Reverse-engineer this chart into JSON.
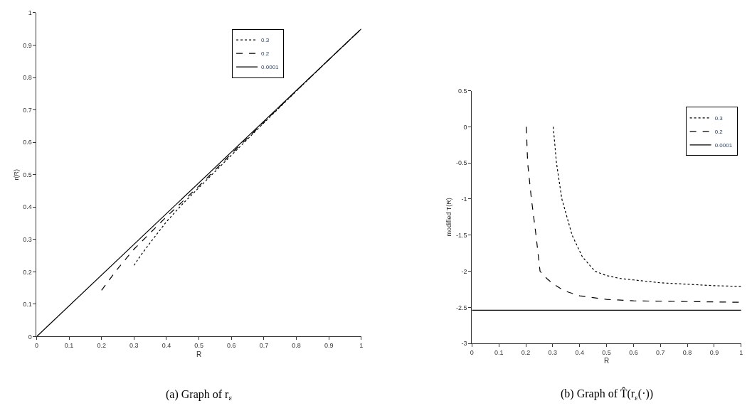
{
  "chart_data": [
    {
      "type": "line",
      "xlabel": "R",
      "ylabel": "r(R)",
      "xlim": [
        0,
        1
      ],
      "ylim": [
        0,
        1
      ],
      "xticks": [
        0,
        0.1,
        0.2,
        0.3,
        0.4,
        0.5,
        0.6,
        0.7,
        0.8,
        0.9,
        1
      ],
      "yticks": [
        0,
        0.1,
        0.2,
        0.3,
        0.4,
        0.5,
        0.6,
        0.7,
        0.8,
        0.9,
        1
      ],
      "legend": "top",
      "annotations": [
        "(a) Graph of r$_{ε}$"
      ],
      "series": [
        {
          "name": "0.3",
          "color": "#000000",
          "line_style": "dotted",
          "x": [
            0.3,
            0.32,
            0.35,
            0.4,
            0.45,
            0.5,
            0.6,
            0.7,
            0.8,
            0.9,
            1
          ],
          "values": [
            0.22,
            0.25,
            0.29,
            0.355,
            0.41,
            0.46,
            0.56,
            0.66,
            0.758,
            0.855,
            0.95
          ]
        },
        {
          "name": "0.2",
          "color": "#000000",
          "line_style": "dashed",
          "x": [
            0.2,
            0.22,
            0.25,
            0.3,
            0.35,
            0.4,
            0.5,
            0.6,
            0.7,
            0.8,
            0.9,
            1
          ],
          "values": [
            0.143,
            0.17,
            0.21,
            0.27,
            0.32,
            0.37,
            0.465,
            0.565,
            0.662,
            0.759,
            0.855,
            0.95
          ]
        },
        {
          "name": "0.0001",
          "color": "#000000",
          "line_style": "solid",
          "x": [
            0,
            1
          ],
          "values": [
            0,
            0.95
          ]
        }
      ]
    },
    {
      "type": "line",
      "xlabel": "R",
      "ylabel": "modified T(R)",
      "xlim": [
        0,
        1
      ],
      "ylim": [
        -3,
        0.5
      ],
      "xticks": [
        0,
        0.1,
        0.2,
        0.3,
        0.4,
        0.5,
        0.6,
        0.7,
        0.8,
        0.9,
        1
      ],
      "yticks": [
        -3,
        -2.5,
        -2,
        -1.5,
        -1,
        -0.5,
        0,
        0.5
      ],
      "legend": "top right",
      "annotations": [
        "(b) Graph of T̂(r$_{ε}$(·))"
      ],
      "series": [
        {
          "name": "0.3",
          "color": "#000000",
          "line_style": "dotted",
          "x": [
            0.302,
            0.314,
            0.334,
            0.372,
            0.41,
            0.457,
            0.5,
            0.55,
            0.6,
            0.7,
            0.8,
            0.9,
            1
          ],
          "values": [
            0,
            -0.5,
            -1,
            -1.5,
            -1.8,
            -2,
            -2.06,
            -2.1,
            -2.12,
            -2.16,
            -2.18,
            -2.2,
            -2.21
          ]
        },
        {
          "name": "0.2",
          "color": "#000000",
          "line_style": "dashed",
          "x": [
            0.202,
            0.207,
            0.221,
            0.238,
            0.253,
            0.278,
            0.3,
            0.33,
            0.35,
            0.4,
            0.5,
            0.6,
            0.8,
            1
          ],
          "values": [
            0,
            -0.5,
            -1,
            -1.5,
            -2,
            -2.1,
            -2.17,
            -2.24,
            -2.28,
            -2.34,
            -2.39,
            -2.41,
            -2.42,
            -2.43
          ]
        },
        {
          "name": "0.0001",
          "color": "#000000",
          "line_style": "solid",
          "x": [
            0,
            1
          ],
          "values": [
            -2.54,
            -2.54
          ]
        }
      ]
    }
  ]
}
